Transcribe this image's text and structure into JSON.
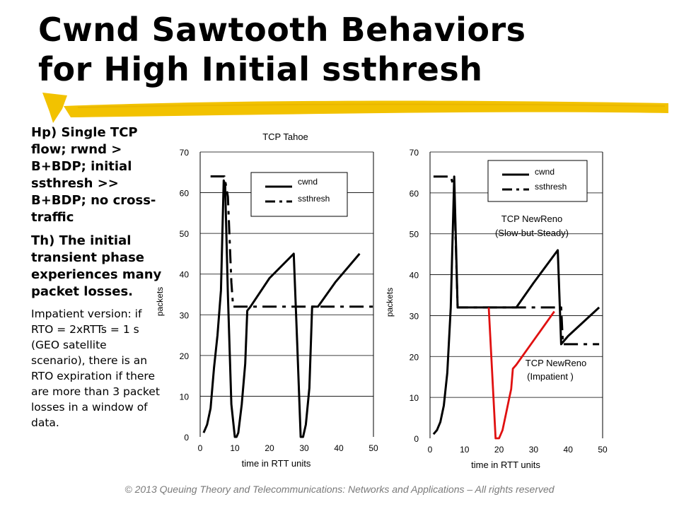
{
  "slide": {
    "title_line1": "Cwnd Sawtooth Behaviors",
    "title_line2": "for High Initial ssthresh",
    "hp": "Hp) Single TCP flow; rwnd > B+BDP;  initial ssthresh >> B+BDP; no cross-traffic",
    "th": "Th) The initial transient phase experiences many packet losses.",
    "impatient": "Impatient version: if RTO = 2xRTTs = 1 s (GEO satellite scenario), there is an RTO expiration if there are more than 3 packet losses in a window of data.",
    "footer": "© 2013 Queuing Theory and Telecommunications: Networks and Applications – All rights reserved",
    "colors": {
      "highlight": "#f2c200",
      "line": "#000000",
      "impatient": "#e01010",
      "footer": "#7a7a7a"
    }
  },
  "chart_data": [
    {
      "type": "line",
      "title": "TCP Tahoe",
      "xlabel": "time in RTT units",
      "ylabel": "packets",
      "xlim": [
        0,
        50
      ],
      "ylim": [
        0,
        70
      ],
      "xticks": [
        "0",
        "10",
        "20",
        "30",
        "40",
        "50"
      ],
      "yticks": [
        "0",
        "10",
        "20",
        "30",
        "40",
        "50",
        "60",
        "70"
      ],
      "legend": {
        "placement": "top-right",
        "entries": [
          "cwnd",
          "ssthresh"
        ]
      },
      "series": [
        {
          "name": "cwnd",
          "style": "solid",
          "points": [
            [
              1,
              1
            ],
            [
              2,
              3
            ],
            [
              3,
              7
            ],
            [
              4,
              17
            ],
            [
              5,
              25
            ],
            [
              6,
              36
            ],
            [
              6.8,
              63
            ],
            [
              7.2,
              62
            ],
            [
              8,
              35
            ],
            [
              9,
              8
            ],
            [
              10,
              0
            ],
            [
              10.5,
              0
            ],
            [
              11,
              1
            ],
            [
              12,
              8
            ],
            [
              13,
              18
            ],
            [
              13.6,
              31
            ],
            [
              14.5,
              32
            ],
            [
              20,
              39
            ],
            [
              27,
              45
            ],
            [
              28,
              23
            ],
            [
              29,
              0
            ],
            [
              29.7,
              0
            ],
            [
              30.5,
              3
            ],
            [
              31.5,
              12
            ],
            [
              32.3,
              32
            ],
            [
              34,
              32
            ],
            [
              39,
              38
            ],
            [
              46,
              45
            ]
          ]
        },
        {
          "name": "ssthresh",
          "style": "dashdot",
          "points": [
            [
              3,
              64
            ],
            [
              7,
              64
            ],
            [
              8,
              59
            ],
            [
              9,
              38
            ],
            [
              9.5,
              32
            ],
            [
              51,
              32
            ]
          ]
        }
      ]
    },
    {
      "type": "line",
      "xlabel": "time in RTT units",
      "ylabel": "packets",
      "xlim": [
        0,
        50
      ],
      "ylim": [
        0,
        70
      ],
      "xticks": [
        "0",
        "10",
        "20",
        "30",
        "40",
        "50"
      ],
      "yticks": [
        "0",
        "10",
        "20",
        "30",
        "40",
        "50",
        "60",
        "70"
      ],
      "legend": {
        "placement": "top-right",
        "entries": [
          "cwnd",
          "ssthresh"
        ]
      },
      "annotations": [
        "TCP NewReno",
        "(Slow-but-Steady)",
        "TCP NewReno",
        "(Impatient )"
      ],
      "series": [
        {
          "name": "cwnd",
          "style": "solid",
          "points": [
            [
              1,
              1
            ],
            [
              2,
              2
            ],
            [
              3,
              4
            ],
            [
              4,
              8
            ],
            [
              5,
              16
            ],
            [
              6,
              32
            ],
            [
              7,
              64
            ],
            [
              8,
              32
            ],
            [
              12,
              32
            ],
            [
              25,
              32
            ],
            [
              30,
              38
            ],
            [
              37,
              46
            ],
            [
              38,
              23
            ],
            [
              40,
              25
            ],
            [
              49,
              32
            ]
          ]
        },
        {
          "name": "ssthresh",
          "style": "dashdot",
          "points": [
            [
              1,
              64
            ],
            [
              6,
              64
            ],
            [
              7,
              61
            ],
            [
              8,
              32
            ],
            [
              38,
              32
            ],
            [
              38.5,
              23
            ],
            [
              49,
              23
            ]
          ]
        },
        {
          "name": "",
          "style": "solid",
          "color": "#e01010",
          "points": [
            [
              17,
              32
            ],
            [
              19,
              0
            ],
            [
              20,
              0
            ],
            [
              21,
              2
            ],
            [
              22,
              6
            ],
            [
              23,
              10
            ],
            [
              23.5,
              12
            ],
            [
              24,
              17
            ],
            [
              25,
              18
            ],
            [
              36,
              31
            ]
          ]
        }
      ]
    }
  ]
}
